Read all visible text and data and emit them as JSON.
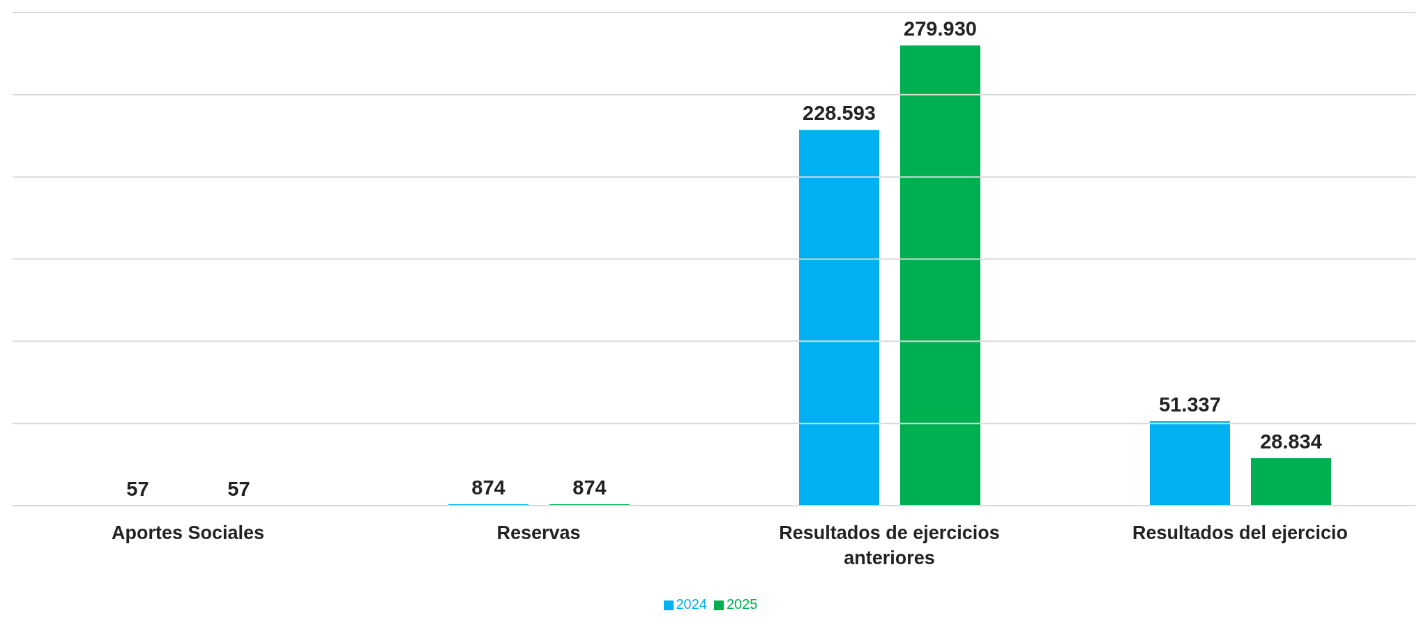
{
  "chart_data": {
    "type": "bar",
    "categories": [
      "Aportes Sociales",
      "Reservas",
      "Resultados de ejercicios anteriores",
      "Resultados del ejercicio"
    ],
    "series": [
      {
        "name": "2024",
        "color": "#00b0f0",
        "values": [
          57,
          874,
          228593,
          51337
        ],
        "value_labels": [
          "57",
          "874",
          "228.593",
          "51.337"
        ]
      },
      {
        "name": "2025",
        "color": "#00b050",
        "values": [
          57,
          874,
          279930,
          28834
        ],
        "value_labels": [
          "57",
          "874",
          "279.930",
          "28.834"
        ]
      }
    ],
    "ylim": [
      0,
      300000
    ],
    "yticks": [
      0,
      50000,
      100000,
      150000,
      200000,
      250000,
      300000
    ],
    "grid": "y",
    "tick_labels": "x",
    "legend": "bottom"
  }
}
